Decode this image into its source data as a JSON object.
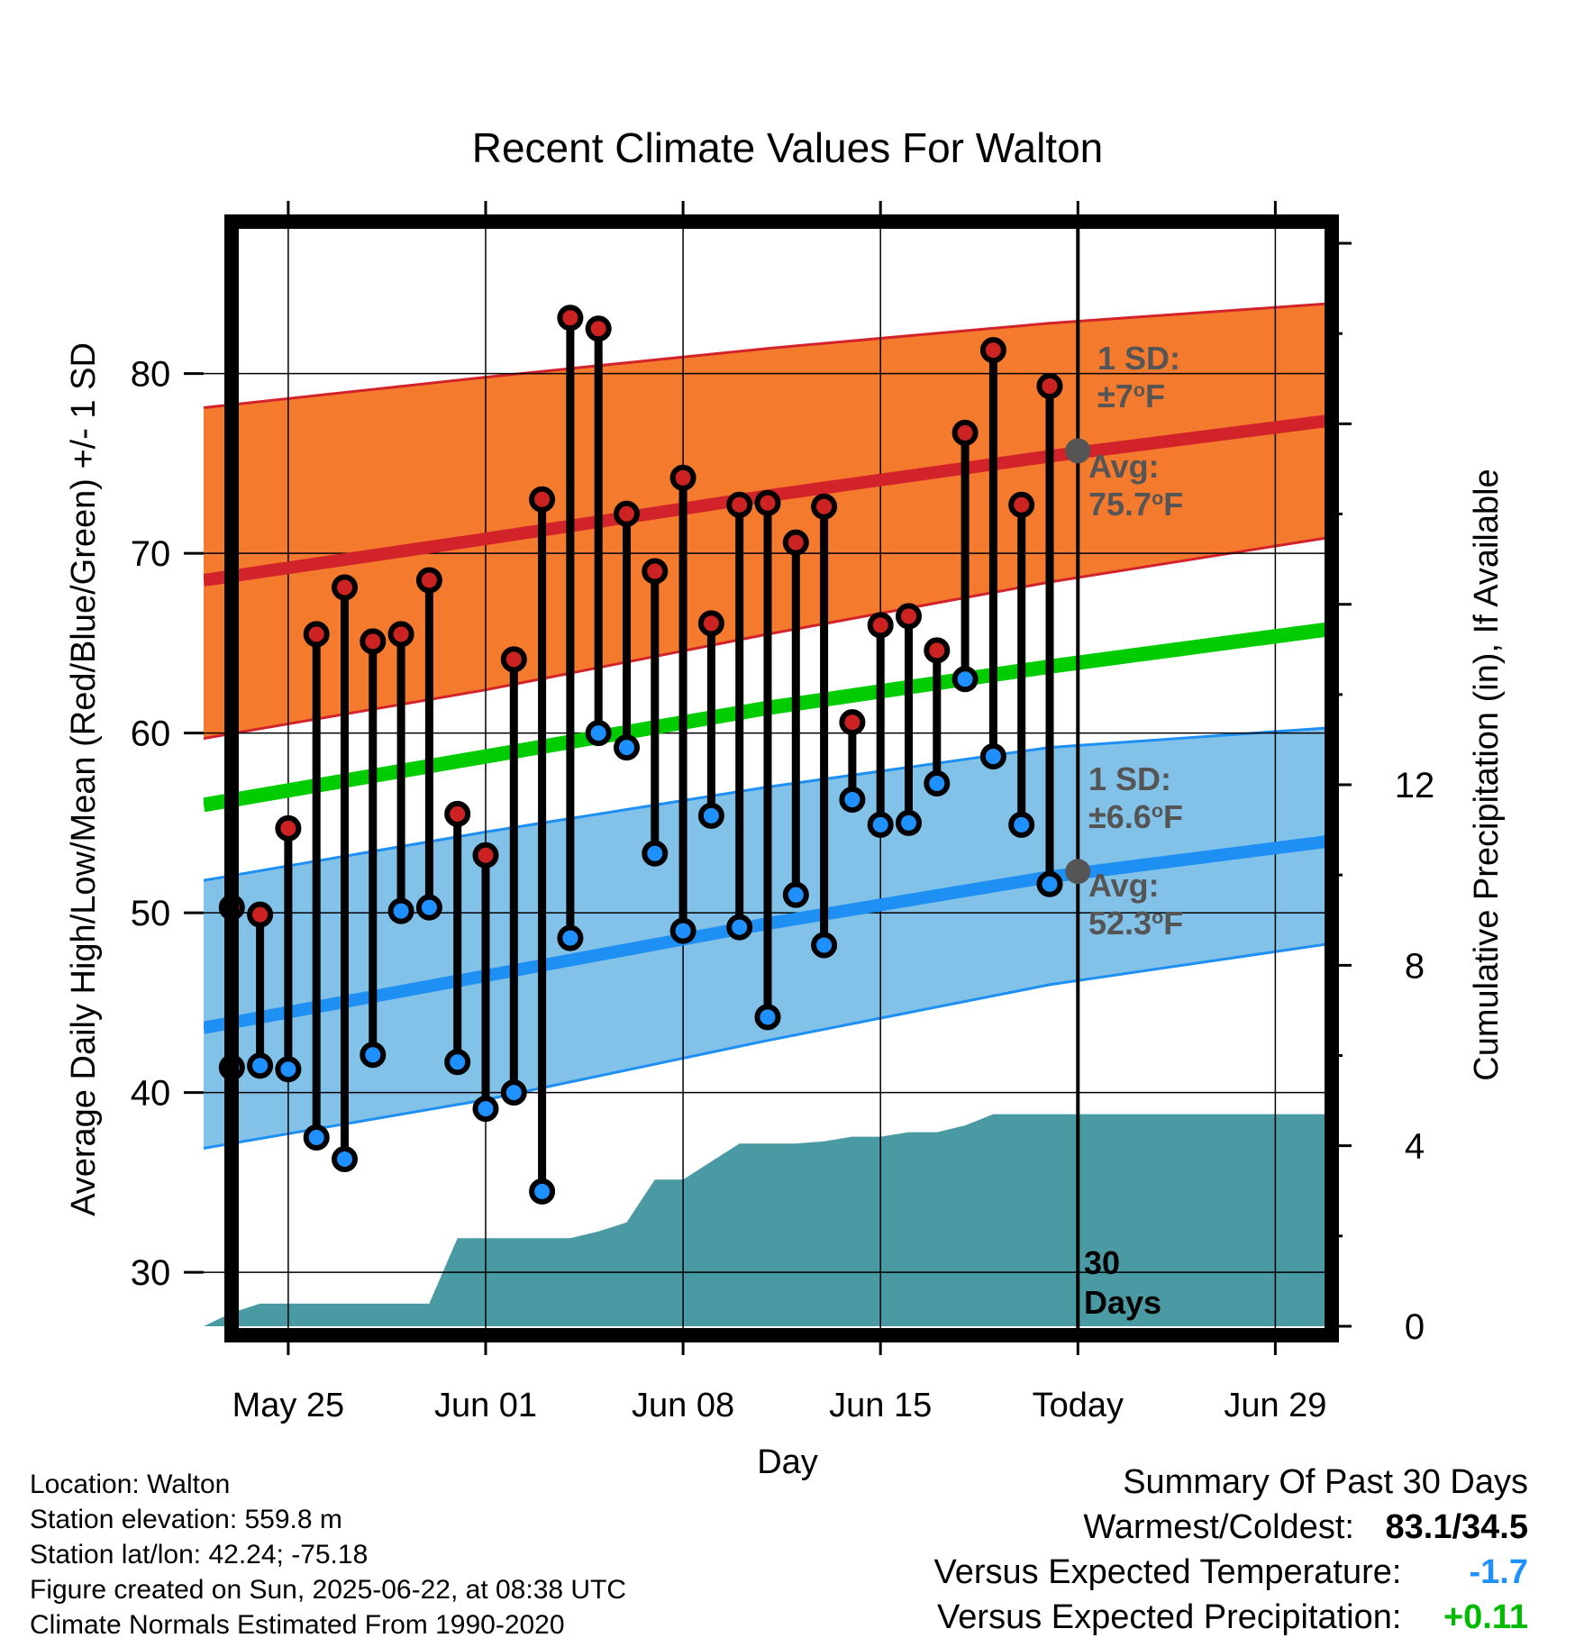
{
  "chart_data": {
    "type": "line",
    "title": "Recent Climate Values For Walton",
    "xlabel": "Day",
    "ylabel": "Average Daily High/Low/Mean (Red/Blue/Green) +/- 1 SD",
    "y2label": "Cumulative Precipitation (in), If Available",
    "xlim": [
      "May 22",
      "Jul 1"
    ],
    "ylim": [
      26.5,
      88.5
    ],
    "y2lim": [
      -0.2,
      24.5
    ],
    "x_tick_labels": [
      "May 25",
      "Jun 01",
      "Jun 08",
      "Jun 15",
      "Today",
      "Jun 29"
    ],
    "x_tick_dates": [
      "May 25",
      "Jun 01",
      "Jun 08",
      "Jun 15",
      "Jun 22",
      "Jun 29"
    ],
    "y_ticks": [
      30,
      40,
      50,
      60,
      70,
      80
    ],
    "y2_ticks": [
      0,
      4,
      8,
      12
    ],
    "today": "Jun 22",
    "today_label": "30\nDays",
    "colors": {
      "high_band": "#f47a2e",
      "high_line": "#d3232a",
      "low_band": "#82c1e8",
      "low_line": "#1e8ff3",
      "mean_line": "#00cc00",
      "precip": "#4a9aa3",
      "high_dot": "#cc2222",
      "low_dot": "#1e90ff",
      "annotation": "#555555"
    },
    "normals": {
      "dates": [
        "May 22",
        "Jun 1",
        "Jun 11",
        "Jun 21",
        "Jul 1"
      ],
      "avg_high": [
        68.5,
        70.8,
        73.2,
        75.4,
        77.4
      ],
      "high_sd_upper": [
        78.1,
        79.8,
        81.4,
        82.8,
        83.9
      ],
      "high_sd_lower": [
        59.7,
        62.4,
        65.5,
        68.4,
        70.9
      ],
      "avg_low": [
        43.6,
        46.5,
        49.4,
        52.0,
        54.0
      ],
      "low_sd_upper": [
        51.8,
        54.5,
        57.0,
        59.2,
        60.3
      ],
      "low_sd_lower": [
        36.9,
        39.6,
        42.9,
        46.0,
        48.3
      ],
      "avg_mean": [
        56.0,
        58.7,
        61.4,
        63.7,
        65.8
      ]
    },
    "annotations": {
      "high_sd": "1 SD:\n±7°F",
      "high_avg": "Avg:\n75.7°F",
      "low_sd": "1 SD:\n±6.6°F",
      "low_avg": "Avg:\n52.3°F",
      "today_avg_high": 75.7,
      "today_avg_low": 52.3
    },
    "daily": {
      "dates": [
        "May 23",
        "May 24",
        "May 25",
        "May 26",
        "May 27",
        "May 28",
        "May 29",
        "May 30",
        "May 31",
        "Jun 1",
        "Jun 2",
        "Jun 3",
        "Jun 4",
        "Jun 5",
        "Jun 6",
        "Jun 7",
        "Jun 8",
        "Jun 9",
        "Jun 10",
        "Jun 11",
        "Jun 12",
        "Jun 13",
        "Jun 14",
        "Jun 15",
        "Jun 16",
        "Jun 17",
        "Jun 18",
        "Jun 19",
        "Jun 20",
        "Jun 21"
      ],
      "highs": [
        50.3,
        49.9,
        54.7,
        65.5,
        68.1,
        65.1,
        65.5,
        68.5,
        55.5,
        53.2,
        64.1,
        73.0,
        83.1,
        82.5,
        72.2,
        69.0,
        74.2,
        66.1,
        72.7,
        72.8,
        70.6,
        72.6,
        60.6,
        66.0,
        66.5,
        64.6,
        76.7,
        81.3,
        72.7,
        79.3
      ],
      "lows": [
        41.4,
        41.5,
        41.3,
        37.5,
        36.3,
        42.1,
        50.1,
        50.3,
        41.7,
        39.1,
        40.0,
        34.5,
        48.6,
        60.0,
        59.2,
        53.3,
        49.0,
        55.4,
        49.2,
        44.2,
        51.0,
        48.2,
        56.3,
        54.9,
        55.0,
        57.2,
        63.0,
        58.7,
        54.9,
        51.6
      ]
    },
    "precip_cumulative": {
      "dates": [
        "May 22",
        "May 23",
        "May 24",
        "May 25",
        "May 26",
        "May 27",
        "May 28",
        "May 29",
        "May 30",
        "May 31",
        "Jun 1",
        "Jun 2",
        "Jun 3",
        "Jun 4",
        "Jun 5",
        "Jun 6",
        "Jun 7",
        "Jun 8",
        "Jun 9",
        "Jun 10",
        "Jun 11",
        "Jun 12",
        "Jun 13",
        "Jun 14",
        "Jun 15",
        "Jun 16",
        "Jun 17",
        "Jun 18",
        "Jun 19",
        "Jun 20",
        "Jun 21",
        "Jul 1"
      ],
      "values": [
        0.0,
        0.3,
        0.5,
        0.5,
        0.5,
        0.5,
        0.5,
        0.5,
        0.5,
        1.95,
        1.95,
        1.95,
        1.95,
        1.95,
        2.1,
        2.3,
        3.25,
        3.25,
        3.65,
        4.05,
        4.05,
        4.05,
        4.1,
        4.2,
        4.2,
        4.3,
        4.3,
        4.45,
        4.7,
        4.7,
        4.7,
        4.7
      ]
    }
  },
  "info": {
    "location": "Location: Walton",
    "elevation": "Station elevation: 559.8 m",
    "latlon": "Station lat/lon: 42.24; -75.18",
    "created": "Figure created on Sun, 2025-06-22, at 08:38 UTC",
    "normals": "Climate Normals Estimated From 1990-2020"
  },
  "summary": {
    "title": "Summary Of Past 30 Days",
    "warm_cold_label": "Warmest/Coldest:",
    "warm_cold_value": "83.1/34.5",
    "temp_label": "Versus Expected Temperature:",
    "temp_value": "-1.7",
    "temp_color": "#1e90ff",
    "precip_label": "Versus Expected Precipitation:",
    "precip_value": "+0.11",
    "precip_color": "#00bb00"
  }
}
